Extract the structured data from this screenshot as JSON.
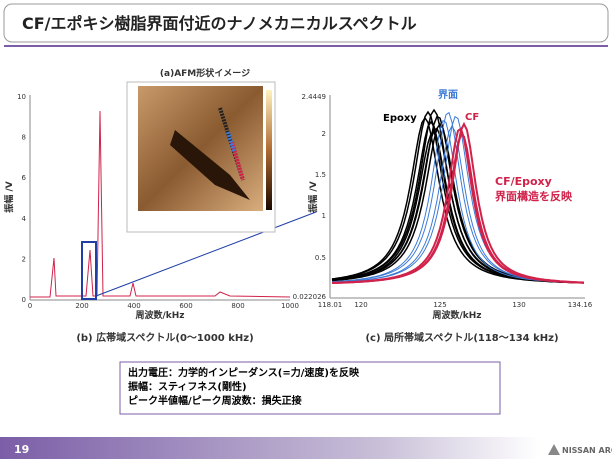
{
  "header": {
    "title": "CF/エポキシ樹脂界面付近のナノメカニカルスペクトル"
  },
  "figure_a": {
    "title": "(a)AFM形状イメージ"
  },
  "figure_b": {
    "caption": "(b) 広帯域スペクトル(0～1000 kHz)",
    "ylabel": "振幅 /V",
    "xlabel": "周波数/kHz",
    "yticks": [
      "0",
      "2",
      "4",
      "6",
      "8",
      "10"
    ],
    "xticks": [
      "0",
      "200",
      "400",
      "600",
      "800",
      "1000"
    ]
  },
  "figure_c": {
    "caption": "(c) 局所帯域スペクトル(118～134 kHz)",
    "ylabel": "振幅 /V",
    "xlabel": "周波数/kHz",
    "yticks": [
      "0.022026",
      "0.5",
      "1",
      "1.5",
      "2",
      "2.4449"
    ],
    "xticks": [
      "118.01",
      "120",
      "125",
      "130",
      "134.16"
    ],
    "labels": [
      "Epoxy",
      "界面",
      "CF"
    ],
    "annotation": [
      "CF/Epoxy",
      "界面構造を反映"
    ]
  },
  "notes": [
    "出力電圧：力学的インピーダンス(=力/速度)を反映",
    "振幅：スティフネス(剛性)",
    "ピーク半値幅/ピーク周波数：損失正接"
  ],
  "footer": {
    "page": "19",
    "logo": "NISSAN ARC"
  }
}
